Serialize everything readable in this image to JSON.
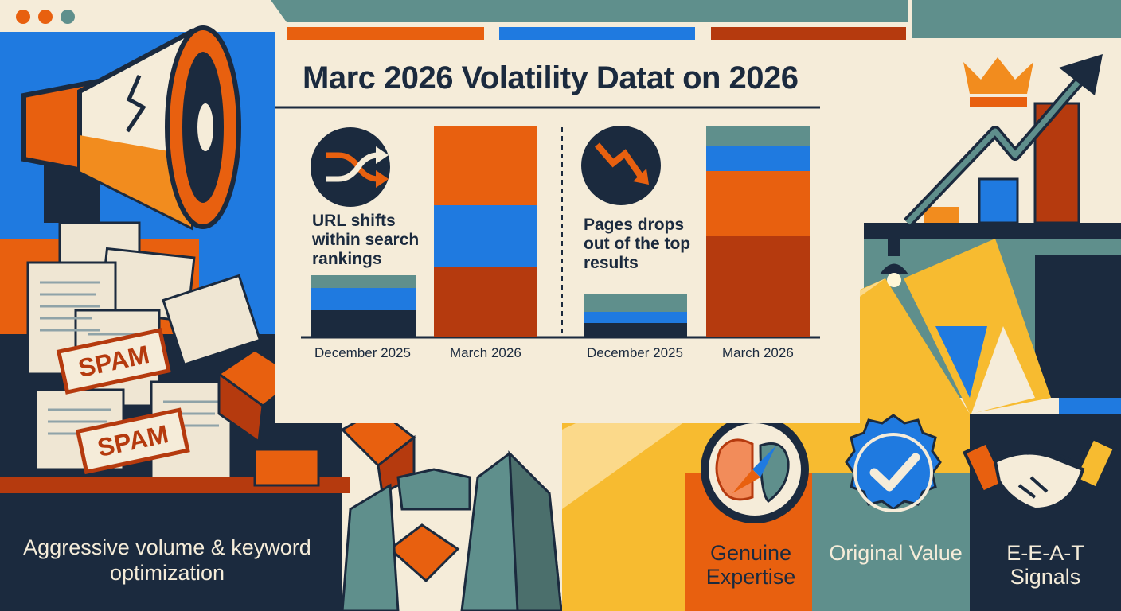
{
  "title": "Marc 2026 Volatility Datat on 2026",
  "colors": {
    "navy": "#1b2a3e",
    "orange": "#e8600f",
    "rust": "#b53a0e",
    "blue": "#1f7ae0",
    "teal": "#5f8f8c",
    "yellow": "#f7bb30",
    "cream": "#f5ecd9"
  },
  "window_dots": [
    "orange",
    "orange",
    "teal"
  ],
  "left_panel": {
    "stamps": [
      "SPAM",
      "SPAM"
    ],
    "caption": "Aggressive volume & keyword optimization"
  },
  "metrics": [
    {
      "icon": "shuffle-icon",
      "label": "URL shifts within search rankings",
      "categories": [
        "December 2025",
        "March 2026"
      ]
    },
    {
      "icon": "trend-down-icon",
      "label": "Pages drops out of the top results",
      "categories": [
        "December 2025",
        "March 2026"
      ]
    }
  ],
  "pillars": [
    {
      "icon": "brain-compass-icon",
      "label": "Genuine Expertise"
    },
    {
      "icon": "checkmark-badge-icon",
      "label": "Original Value"
    },
    {
      "icon": "handshake-icon",
      "label": "E-E-A-T Signals"
    }
  ]
}
